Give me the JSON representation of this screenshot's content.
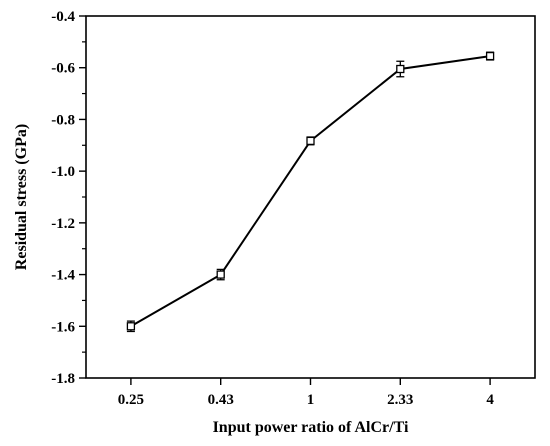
{
  "chart_data": {
    "type": "line",
    "categories": [
      "0.25",
      "0.43",
      "1",
      "2.33",
      "4"
    ],
    "values": [
      -1.6,
      -1.4,
      -0.883,
      -0.605,
      -0.555
    ],
    "errors": [
      0.02,
      0.02,
      0.015,
      0.03,
      0.015
    ],
    "xlabel": "Input power ratio of AlCr/Ti",
    "ylabel": "Residual stress (GPa)",
    "ylim": [
      -1.8,
      -0.4
    ],
    "yticks": [
      -1.8,
      -1.6,
      -1.4,
      -1.2,
      -1.0,
      -0.8,
      -0.6,
      -0.4
    ],
    "ytick_labels": [
      "-1.8",
      "-1.6",
      "-1.4",
      "-1.2",
      "-1.0",
      "-0.8",
      "-0.6",
      "-0.4"
    ],
    "marker": "open-square",
    "grid": false,
    "colors": {
      "line": "#000000",
      "marker_fill": "#ffffff"
    }
  }
}
